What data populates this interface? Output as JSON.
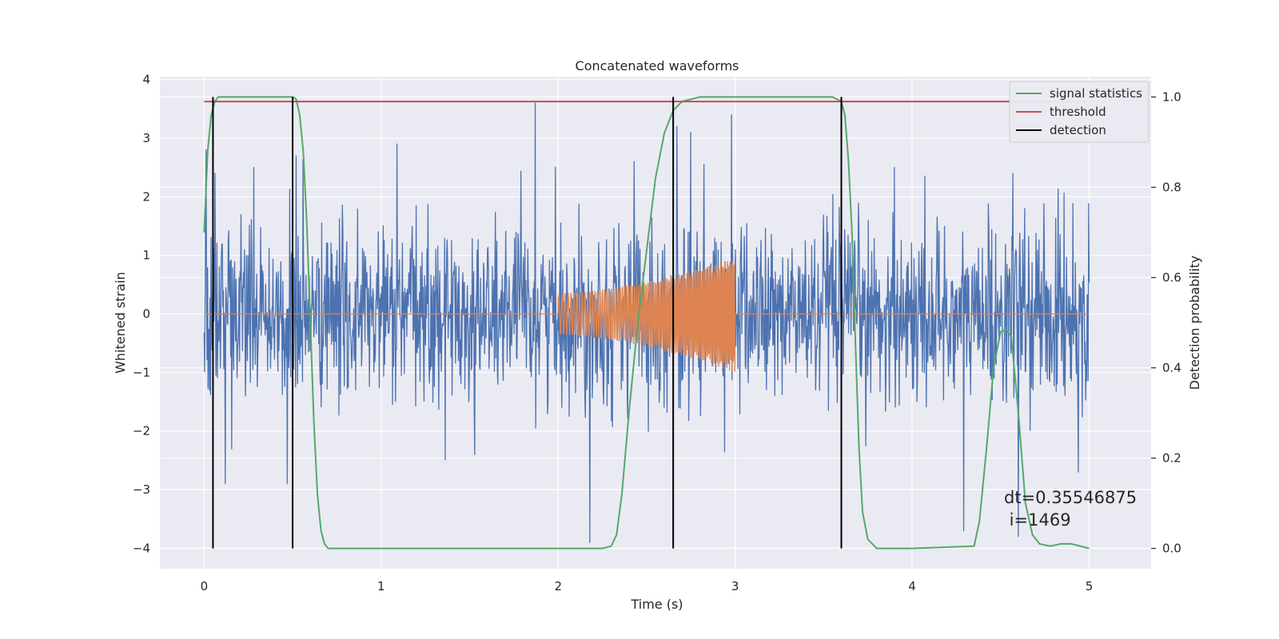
{
  "chart_data": {
    "type": "line",
    "title": "Concatenated waveforms",
    "xlabel": "Time (s)",
    "ylabel": "Whitened strain",
    "y2label": "Detection probability",
    "xlim": [
      -0.25,
      5.35
    ],
    "ylim": [
      -4.35,
      4.05
    ],
    "y2lim": [
      -0.045,
      1.045
    ],
    "xticks": [
      0,
      1,
      2,
      3,
      4,
      5
    ],
    "yticks": [
      -4,
      -3,
      -2,
      -1,
      0,
      1,
      2,
      3,
      4
    ],
    "y2ticks": [
      0.0,
      0.2,
      0.4,
      0.6,
      0.8,
      1.0
    ],
    "grid": true,
    "legend_position": "top-right",
    "colors": {
      "background": "#eaeaf2",
      "grid": "#ffffff",
      "strain": "#4c72b0",
      "injection": "#dd8452",
      "signal_statistics": "#55a868",
      "threshold": "#c44e52",
      "detection": "#000000"
    },
    "series": [
      {
        "name": "",
        "role": "whitened-strain",
        "description_values": {
          "t_range": [
            0,
            5
          ],
          "sigma": 0.75,
          "peaks": [
            [
              0.01,
              2.8
            ],
            [
              0.06,
              2.4
            ],
            [
              0.28,
              2.5
            ],
            [
              0.52,
              2.7
            ],
            [
              1.09,
              2.9
            ],
            [
              1.87,
              3.6
            ],
            [
              2.43,
              2.6
            ],
            [
              2.98,
              3.4
            ],
            [
              2.67,
              3.2
            ],
            [
              2.75,
              3.1
            ],
            [
              2.18,
              -3.9
            ],
            [
              3.9,
              2.5
            ],
            [
              4.29,
              -3.7
            ],
            [
              4.57,
              2.4
            ],
            [
              4.6,
              -3.8
            ],
            [
              0.47,
              -2.9
            ],
            [
              0.12,
              -2.9
            ],
            [
              1.53,
              -2.4
            ],
            [
              4.94,
              -2.7
            ]
          ]
        }
      },
      {
        "name": "",
        "role": "injected-chirp",
        "description_values": {
          "t_start": 2.0,
          "t_end": 3.0,
          "amp_start": 0.35,
          "amp_end": 0.95,
          "amp_min_start": -0.35,
          "amp_min_end": -1.0
        }
      },
      {
        "name": "signal statistics",
        "axis": "right",
        "x": [
          0,
          0.02,
          0.04,
          0.06,
          0.08,
          0.1,
          0.3,
          0.45,
          0.5,
          0.52,
          0.54,
          0.56,
          0.58,
          0.6,
          0.62,
          0.64,
          0.66,
          0.68,
          0.7,
          1.5,
          2.25,
          2.3,
          2.33,
          2.36,
          2.4,
          2.45,
          2.5,
          2.55,
          2.6,
          2.65,
          2.7,
          2.8,
          3.0,
          3.3,
          3.55,
          3.6,
          3.62,
          3.64,
          3.66,
          3.68,
          3.7,
          3.72,
          3.75,
          3.8,
          4.0,
          4.35,
          4.38,
          4.42,
          4.46,
          4.5,
          4.53,
          4.56,
          4.6,
          4.64,
          4.68,
          4.72,
          4.78,
          4.84,
          4.9,
          4.95,
          5.0
        ],
        "values": [
          0.7,
          0.88,
          0.96,
          0.99,
          1.0,
          1.0,
          1.0,
          1.0,
          1.0,
          0.995,
          0.96,
          0.88,
          0.72,
          0.5,
          0.28,
          0.12,
          0.04,
          0.01,
          0.0,
          0.0,
          0.0,
          0.005,
          0.03,
          0.12,
          0.3,
          0.5,
          0.66,
          0.82,
          0.92,
          0.97,
          0.99,
          1.0,
          1.0,
          1.0,
          1.0,
          0.99,
          0.96,
          0.86,
          0.7,
          0.45,
          0.22,
          0.08,
          0.02,
          0.0,
          0.0,
          0.005,
          0.06,
          0.22,
          0.4,
          0.48,
          0.485,
          0.47,
          0.3,
          0.1,
          0.03,
          0.01,
          0.005,
          0.01,
          0.01,
          0.005,
          0.0
        ]
      },
      {
        "name": "threshold",
        "axis": "right",
        "x": [
          0,
          5
        ],
        "values": [
          0.99,
          0.99
        ]
      },
      {
        "name": "detection",
        "axis": "right",
        "type": "vlines",
        "x": [
          0.05,
          0.5,
          2.65,
          3.6
        ],
        "ymin": 0.0,
        "ymax": 1.0
      }
    ],
    "annotations": [
      "dt=0.35546875",
      " i=1469"
    ]
  }
}
